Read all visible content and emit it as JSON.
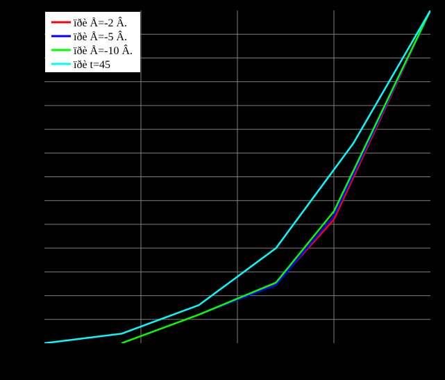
{
  "chart_data": {
    "type": "line",
    "title": "",
    "xlabel": "",
    "ylabel": "",
    "xlim": [
      0,
      10
    ],
    "ylim": [
      0,
      14
    ],
    "x_gridlines": [
      2.5,
      5,
      7.5
    ],
    "y_gridlines": [
      1,
      2,
      3,
      4,
      5,
      6,
      7,
      8,
      9,
      10,
      11,
      12,
      13
    ],
    "grid": true,
    "legend": "top-left",
    "background": "#000000",
    "grid_color": "#808080",
    "series": [
      {
        "name": "ïðè Å=-2 Â.",
        "color": "#ff0000",
        "x": [
          2,
          4,
          6,
          7.5,
          10
        ],
        "y": [
          0,
          1.2,
          2.5,
          5.2,
          14
        ]
      },
      {
        "name": "ïðè Å=-5 Â.",
        "color": "#0000ff",
        "x": [
          2,
          4,
          6,
          7.5,
          10
        ],
        "y": [
          0,
          1.2,
          2.45,
          5.35,
          14
        ]
      },
      {
        "name": "ïðè Å=-10 Â.",
        "color": "#00ff00",
        "x": [
          2,
          4,
          6,
          7.5,
          10
        ],
        "y": [
          0,
          1.2,
          2.55,
          5.55,
          14
        ]
      },
      {
        "name": "ïðè t=45",
        "color": "#00ffff",
        "x": [
          0,
          2,
          4,
          6,
          8,
          10
        ],
        "y": [
          0,
          0.4,
          1.6,
          4,
          8.4,
          14
        ]
      }
    ]
  }
}
